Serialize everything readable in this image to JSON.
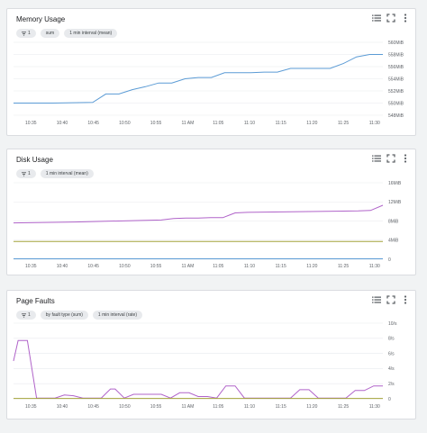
{
  "cards": [
    {
      "title": "Memory Usage",
      "chips": [
        "1",
        "sum",
        "1 min interval (mean)"
      ]
    },
    {
      "title": "Disk Usage",
      "chips": [
        "1",
        "1 min interval (mean)"
      ]
    },
    {
      "title": "Page Faults",
      "chips": [
        "1",
        "by fault type (sum)",
        "1 min interval (rate)"
      ]
    }
  ],
  "icons": [
    "legend-icon",
    "fullscreen-icon",
    "more-vert-icon"
  ],
  "colors": {
    "blue": "#5b9bd5",
    "purple": "#b063c9",
    "olive": "#a3a33a"
  },
  "chart_data": [
    {
      "type": "line",
      "x": [
        "10:35",
        "10:40",
        "10:45",
        "10:50",
        "10:55",
        "11 AM",
        "11:05",
        "11:10",
        "11:15",
        "11:20",
        "11:25",
        "11:30"
      ],
      "xticks": [
        "10:35",
        "10:40",
        "10:45",
        "10:50",
        "10:55",
        "11 AM",
        "11:05",
        "11:10",
        "11:15",
        "11:20",
        "11:25",
        "11:30"
      ],
      "yticks": [
        "548MiB",
        "550MiB",
        "552MiB",
        "554MiB",
        "556MiB",
        "558MiB",
        "560MiB"
      ],
      "ylim": [
        548,
        560
      ],
      "series": [
        {
          "color": "#5b9bd5",
          "points": [
            [
              0,
              550
            ],
            [
              3,
              550
            ],
            [
              6,
              550.1
            ],
            [
              7,
              551.5
            ],
            [
              8,
              551.5
            ],
            [
              9,
              552.2
            ],
            [
              10,
              552.7
            ],
            [
              11,
              553.3
            ],
            [
              12,
              553.3
            ],
            [
              13,
              554
            ],
            [
              14,
              554.2
            ],
            [
              15,
              554.2
            ],
            [
              16,
              555
            ],
            [
              17,
              555
            ],
            [
              18,
              555
            ],
            [
              19,
              555.1
            ],
            [
              20,
              555.1
            ],
            [
              21,
              555.7
            ],
            [
              22,
              555.7
            ],
            [
              23,
              555.7
            ],
            [
              24,
              555.7
            ],
            [
              25,
              556.5
            ],
            [
              26,
              557.6
            ],
            [
              27,
              558
            ],
            [
              28,
              558
            ]
          ]
        }
      ]
    },
    {
      "type": "line",
      "x": [
        "10:35",
        "10:40",
        "10:45",
        "10:50",
        "10:55",
        "11 AM",
        "11:05",
        "11:10",
        "11:15",
        "11:20",
        "11:25",
        "11:30"
      ],
      "xticks": [
        "10:35",
        "10:40",
        "10:45",
        "10:50",
        "10:55",
        "11 AM",
        "11:05",
        "11:10",
        "11:15",
        "11:20",
        "11:25",
        "11:30"
      ],
      "yticks": [
        "0",
        "4MiB",
        "8MiB",
        "12MiB",
        "16MiB"
      ],
      "ylim": [
        0,
        16
      ],
      "series": [
        {
          "color": "#b063c9",
          "points": [
            [
              0,
              7.6
            ],
            [
              5,
              7.8
            ],
            [
              10,
              8.1
            ],
            [
              12,
              8.2
            ],
            [
              13,
              8.5
            ],
            [
              14,
              8.6
            ],
            [
              15,
              8.6
            ],
            [
              16,
              8.7
            ],
            [
              17,
              8.7
            ],
            [
              18,
              9.7
            ],
            [
              19,
              9.8
            ],
            [
              28,
              10.1
            ],
            [
              29,
              10.2
            ],
            [
              30,
              11.3
            ]
          ]
        },
        {
          "color": "#a3a33a",
          "points": [
            [
              0,
              3.7
            ],
            [
              30,
              3.7
            ]
          ]
        },
        {
          "color": "#5b9bd5",
          "points": [
            [
              0,
              0.1
            ],
            [
              30,
              0.1
            ]
          ]
        }
      ]
    },
    {
      "type": "line",
      "x": [
        "10:35",
        "10:40",
        "10:45",
        "10:50",
        "10:55",
        "11 AM",
        "11:05",
        "11:10",
        "11:15",
        "11:20",
        "11:25",
        "11:30"
      ],
      "xticks": [
        "10:35",
        "10:40",
        "10:45",
        "10:50",
        "10:55",
        "11 AM",
        "11:05",
        "11:10",
        "11:15",
        "11:20",
        "11:25",
        "11:30"
      ],
      "yticks": [
        "0",
        "2/s",
        "4/s",
        "6/s",
        "8/s",
        "10/s"
      ],
      "ylim": [
        0,
        10
      ],
      "series": [
        {
          "color": "#b063c9",
          "points": [
            [
              0,
              5
            ],
            [
              0.5,
              7.7
            ],
            [
              1.5,
              7.7
            ],
            [
              2.5,
              0.1
            ],
            [
              4.5,
              0.1
            ],
            [
              5.5,
              0.5
            ],
            [
              6.5,
              0.4
            ],
            [
              7.5,
              0.1
            ],
            [
              9.5,
              0.1
            ],
            [
              10.5,
              1.3
            ],
            [
              11,
              1.3
            ],
            [
              12,
              0.1
            ],
            [
              13,
              0.6
            ],
            [
              14.5,
              0.6
            ],
            [
              16,
              0.6
            ],
            [
              17,
              0.1
            ],
            [
              18,
              0.8
            ],
            [
              19,
              0.8
            ],
            [
              20,
              0.3
            ],
            [
              21,
              0.3
            ],
            [
              22,
              0.1
            ],
            [
              23,
              1.7
            ],
            [
              24,
              1.7
            ],
            [
              25,
              0.1
            ],
            [
              30,
              0.1
            ],
            [
              31,
              1.2
            ],
            [
              32,
              1.2
            ],
            [
              33,
              0.1
            ],
            [
              36,
              0.1
            ],
            [
              37,
              1.1
            ],
            [
              38,
              1.1
            ],
            [
              39,
              1.7
            ],
            [
              40,
              1.7
            ]
          ]
        },
        {
          "color": "#a3a33a",
          "points": [
            [
              0,
              0.05
            ],
            [
              40,
              0.05
            ]
          ]
        }
      ]
    }
  ]
}
